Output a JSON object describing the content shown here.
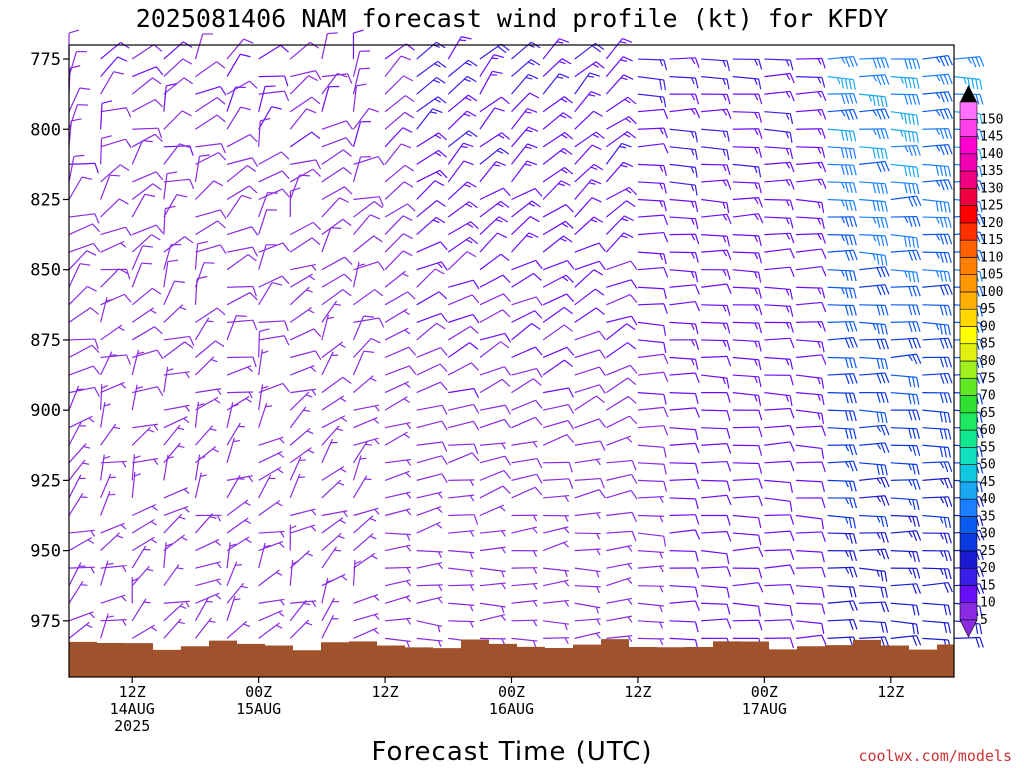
{
  "title": "2025081406 NAM forecast wind profile (kt) for KFDY",
  "credit": "coolwx.com/models",
  "colors": {
    "terrain": "#a0522d",
    "credit": "#cc3333",
    "barb_default": "#8a2be2"
  },
  "chart_data": {
    "type": "wind_barb_time_height",
    "title": "2025081406 NAM forecast wind profile (kt) for KFDY",
    "xlabel": "Forecast Time (UTC)",
    "ylabel": "",
    "units": "kt",
    "y_axis": {
      "quantity": "pressure (hPa)",
      "inverted": true,
      "range": [
        995,
        770
      ],
      "ticks": [
        "775",
        "800",
        "825",
        "850",
        "875",
        "900",
        "925",
        "950",
        "975"
      ]
    },
    "x_axis": {
      "range": [
        "2025-08-14T06Z",
        "2025-08-17T18Z"
      ],
      "step_hours": 3,
      "ticks": [
        {
          "time": "2025-08-14T12Z",
          "label": "12Z",
          "date": "14AUG",
          "year": "2025"
        },
        {
          "time": "2025-08-15T00Z",
          "label": "00Z",
          "date": "15AUG",
          "year": ""
        },
        {
          "time": "2025-08-15T12Z",
          "label": "12Z",
          "date": "",
          "year": ""
        },
        {
          "time": "2025-08-16T00Z",
          "label": "00Z",
          "date": "16AUG",
          "year": ""
        },
        {
          "time": "2025-08-16T12Z",
          "label": "12Z",
          "date": "",
          "year": ""
        },
        {
          "time": "2025-08-17T00Z",
          "label": "00Z",
          "date": "17AUG",
          "year": ""
        },
        {
          "time": "2025-08-17T12Z",
          "label": "12Z",
          "date": "",
          "year": ""
        }
      ]
    },
    "colorbar": {
      "labels": [
        "5",
        "10",
        "15",
        "20",
        "25",
        "30",
        "35",
        "40",
        "45",
        "50",
        "55",
        "60",
        "65",
        "70",
        "75",
        "80",
        "85",
        "90",
        "95",
        "100",
        "105",
        "110",
        "115",
        "120",
        "125",
        "130",
        "135",
        "140",
        "145",
        "150"
      ],
      "colors": [
        "#8a2be2",
        "#6a0dfa",
        "#3a1ee8",
        "#1a1ad0",
        "#0a3ae0",
        "#0a5cf0",
        "#1a80ff",
        "#1aa8f0",
        "#10c8e0",
        "#10e0c0",
        "#10e890",
        "#20e860",
        "#30e030",
        "#60e820",
        "#a0f020",
        "#e0f010",
        "#ffff00",
        "#ffd800",
        "#ffb000",
        "#ff9800",
        "#ff8000",
        "#ff6000",
        "#ff3000",
        "#ff0000",
        "#f00040",
        "#f00080",
        "#f000b0",
        "#ff00d0",
        "#ff40e8",
        "#ff70ff"
      ]
    },
    "ground_pressure_hPa": 985,
    "wind_regimes": [
      {
        "from": "2025-08-14T06Z",
        "to": "2025-08-15T12Z",
        "speed_kt": [
          5,
          10
        ],
        "direction": "variable, mostly northerly to easterly"
      },
      {
        "from": "2025-08-15T12Z",
        "to": "2025-08-16T12Z",
        "speed_kt": [
          5,
          15
        ],
        "direction": "northeasterly, backing to easterly aloft"
      },
      {
        "from": "2025-08-16T12Z",
        "to": "2025-08-17T03Z",
        "speed_kt": [
          10,
          15
        ],
        "direction": "easterly"
      },
      {
        "from": "2025-08-17T03Z",
        "to": "2025-08-17T18Z",
        "speed_kt": [
          20,
          40
        ],
        "direction": "easterly, increasing with height"
      }
    ]
  }
}
